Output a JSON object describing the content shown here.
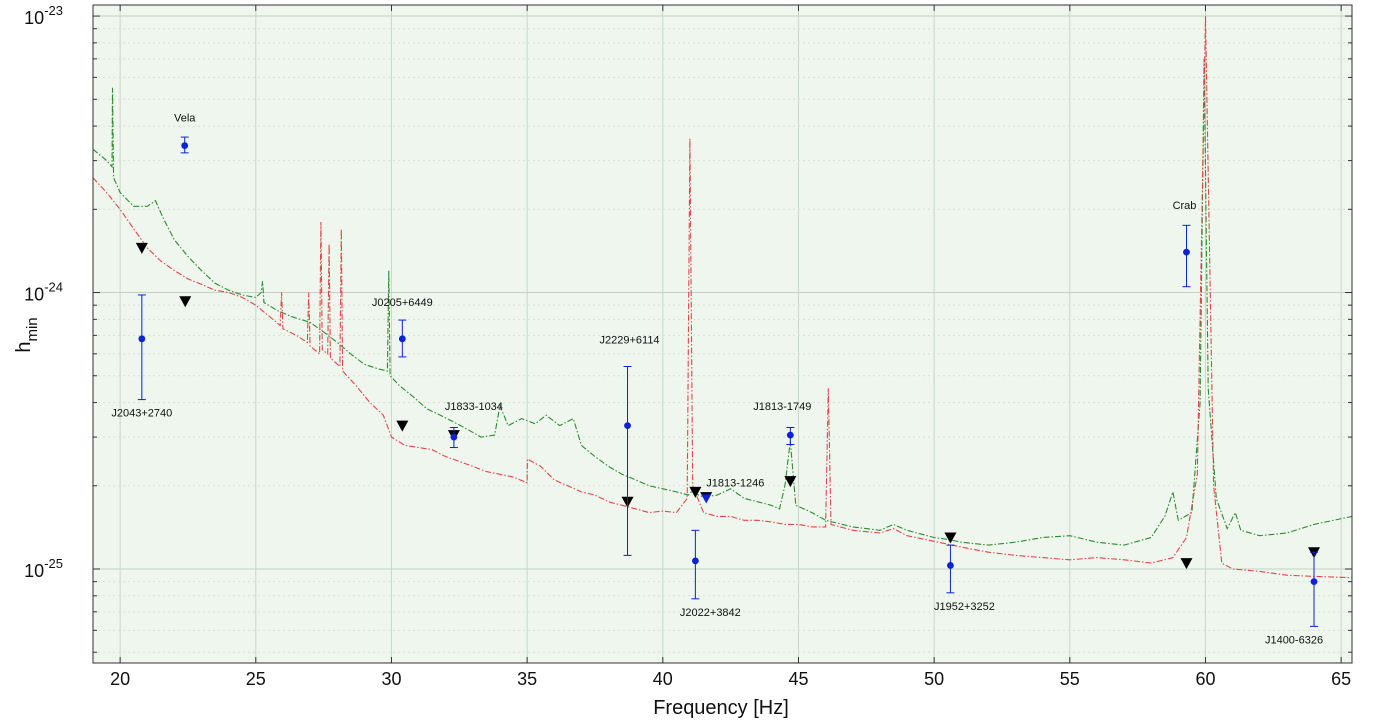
{
  "chart_data": {
    "type": "scatter",
    "title": "",
    "xlabel": "Frequency [Hz]",
    "ylabel": "h",
    "ylabel_sub": "min",
    "xlim": [
      19,
      65.4
    ],
    "ylim_log10": [
      -25.34,
      -22.96
    ],
    "y_scale": "log",
    "grid": true,
    "x_ticks": [
      "20",
      "25",
      "30",
      "35",
      "40",
      "45",
      "50",
      "55",
      "60",
      "65"
    ],
    "y_ticks": [
      {
        "base": "10",
        "exp": "-23"
      },
      {
        "base": "10",
        "exp": "-24"
      },
      {
        "base": "10",
        "exp": "-25"
      }
    ],
    "colors": {
      "background": "#eef6ee",
      "curve_green": "#2e8b2e",
      "curve_red": "#e0464c",
      "points": "#0b22d8",
      "triangles": "#000000"
    },
    "pulsars": [
      {
        "label": "Vela",
        "f": 22.38,
        "h": 3.4e-24,
        "lo": 3.2e-24,
        "hi": 3.65e-24
      },
      {
        "label": "J2043+2740",
        "f": 20.8,
        "h": 6.8e-25,
        "lo": 4.1e-25,
        "hi": 9.8e-25
      },
      {
        "label": "J0205+6449",
        "f": 30.4,
        "h": 6.8e-25,
        "lo": 5.85e-25,
        "hi": 7.95e-25
      },
      {
        "label": "J1833-1034",
        "f": 32.3,
        "h": 3e-25,
        "lo": 2.75e-25,
        "hi": 3.25e-25
      },
      {
        "label": "J2229+6114",
        "f": 38.7,
        "h": 3.3e-25,
        "lo": 1.12e-25,
        "hi": 5.4e-25
      },
      {
        "label": "J1813-1246",
        "f": 41.6,
        "h": 1.8e-25,
        "lo": 1.8e-25,
        "hi": 1.8e-25
      },
      {
        "label": "J2022+3842",
        "f": 41.2,
        "h": 1.07e-25,
        "lo": 7.8e-26,
        "hi": 1.38e-25
      },
      {
        "label": "J1813-1749",
        "f": 44.7,
        "h": 3.05e-25,
        "lo": 2.82e-25,
        "hi": 3.25e-25
      },
      {
        "label": "J1952+3252",
        "f": 50.6,
        "h": 1.03e-25,
        "lo": 8.2e-26,
        "hi": 1.22e-25
      },
      {
        "label": "Crab",
        "f": 59.3,
        "h": 1.4e-24,
        "lo": 1.05e-24,
        "hi": 1.75e-24
      },
      {
        "label": "J1400-6326",
        "f": 64.0,
        "h": 9e-26,
        "lo": 6.2e-26,
        "hi": 1.15e-25
      }
    ],
    "upper_limits": [
      {
        "f": 20.8,
        "h": 1.45e-24
      },
      {
        "f": 22.4,
        "h": 9.3e-25
      },
      {
        "f": 30.4,
        "h": 3.3e-25
      },
      {
        "f": 32.3,
        "h": 3.05e-25
      },
      {
        "f": 38.7,
        "h": 1.75e-25
      },
      {
        "f": 41.2,
        "h": 1.9e-25
      },
      {
        "f": 41.6,
        "h": 1.82e-25
      },
      {
        "f": 44.7,
        "h": 2.08e-25
      },
      {
        "f": 50.6,
        "h": 1.3e-25
      },
      {
        "f": 59.3,
        "h": 1.05e-25
      },
      {
        "f": 64.0,
        "h": 1.15e-25
      }
    ],
    "series": [
      {
        "color": "green",
        "points": [
          [
            19.0,
            3.3e-24
          ],
          [
            19.5,
            3e-24
          ],
          [
            19.7,
            2.85e-24
          ],
          [
            19.72,
            5.5e-24
          ],
          [
            19.76,
            2.6e-24
          ],
          [
            20.0,
            2.3e-24
          ],
          [
            20.5,
            2.05e-24
          ],
          [
            21.0,
            2.05e-24
          ],
          [
            21.3,
            2.15e-24
          ],
          [
            21.6,
            1.85e-24
          ],
          [
            22.0,
            1.55e-24
          ],
          [
            22.5,
            1.35e-24
          ],
          [
            23.0,
            1.2e-24
          ],
          [
            23.5,
            1.08e-24
          ],
          [
            24.0,
            1.02e-24
          ],
          [
            24.5,
            9.8e-25
          ],
          [
            25.0,
            9.6e-25
          ],
          [
            25.2,
            1e-24
          ],
          [
            25.25,
            1.1e-24
          ],
          [
            25.3,
            9.2e-25
          ],
          [
            25.8,
            8.6e-25
          ],
          [
            26.3,
            8.2e-25
          ],
          [
            27.0,
            7.8e-25
          ],
          [
            27.5,
            7.2e-25
          ],
          [
            28.0,
            6.6e-25
          ],
          [
            28.5,
            6e-25
          ],
          [
            29.0,
            5.5e-25
          ],
          [
            29.5,
            5.3e-25
          ],
          [
            29.85,
            5.2e-25
          ],
          [
            29.9,
            1.2e-24
          ],
          [
            29.95,
            5e-25
          ],
          [
            30.3,
            4.6e-25
          ],
          [
            30.8,
            4.2e-25
          ],
          [
            31.3,
            3.8e-25
          ],
          [
            31.8,
            3.6e-25
          ],
          [
            32.3,
            3.4e-25
          ],
          [
            32.8,
            3.2e-25
          ],
          [
            33.3,
            3e-25
          ],
          [
            33.8,
            3.05e-25
          ],
          [
            34.0,
            3.9e-25
          ],
          [
            34.3,
            3.3e-25
          ],
          [
            34.8,
            3.5e-25
          ],
          [
            35.3,
            3.35e-25
          ],
          [
            35.7,
            3.6e-25
          ],
          [
            36.2,
            3.3e-25
          ],
          [
            36.7,
            3.5e-25
          ],
          [
            37.0,
            2.8e-25
          ],
          [
            37.5,
            2.55e-25
          ],
          [
            38.0,
            2.35e-25
          ],
          [
            38.5,
            2.2e-25
          ],
          [
            39.0,
            2.1e-25
          ],
          [
            39.5,
            2e-25
          ],
          [
            40.0,
            1.95e-25
          ],
          [
            40.5,
            1.9e-25
          ],
          [
            40.95,
            1.85e-25
          ],
          [
            41.05,
            1.9e-25
          ],
          [
            41.5,
            1.82e-25
          ],
          [
            42.0,
            1.85e-25
          ],
          [
            42.5,
            1.95e-25
          ],
          [
            43.0,
            1.8e-25
          ],
          [
            43.5,
            1.75e-25
          ],
          [
            44.0,
            1.7e-25
          ],
          [
            44.3,
            1.65e-25
          ],
          [
            44.5,
            2e-25
          ],
          [
            44.7,
            2.9e-25
          ],
          [
            44.9,
            1.7e-25
          ],
          [
            45.5,
            1.6e-25
          ],
          [
            46.0,
            1.5e-25
          ],
          [
            47.0,
            1.42e-25
          ],
          [
            48.0,
            1.38e-25
          ],
          [
            48.5,
            1.45e-25
          ],
          [
            49.0,
            1.38e-25
          ],
          [
            50.0,
            1.3e-25
          ],
          [
            50.5,
            1.28e-25
          ],
          [
            51.0,
            1.25e-25
          ],
          [
            52.0,
            1.22e-25
          ],
          [
            53.0,
            1.25e-25
          ],
          [
            54.0,
            1.3e-25
          ],
          [
            55.0,
            1.32e-25
          ],
          [
            56.0,
            1.25e-25
          ],
          [
            57.0,
            1.22e-25
          ],
          [
            58.0,
            1.3e-25
          ],
          [
            58.5,
            1.55e-25
          ],
          [
            58.8,
            1.9e-25
          ],
          [
            59.0,
            1.5e-25
          ],
          [
            59.5,
            1.6e-25
          ],
          [
            59.8,
            4e-25
          ],
          [
            59.95,
            7e-24
          ],
          [
            60.1,
            4.5e-25
          ],
          [
            60.4,
            1.8e-25
          ],
          [
            60.8,
            1.4e-25
          ],
          [
            61.1,
            1.6e-25
          ],
          [
            61.3,
            1.38e-25
          ],
          [
            62.0,
            1.32e-25
          ],
          [
            63.0,
            1.35e-25
          ],
          [
            64.0,
            1.45e-25
          ],
          [
            65.4,
            1.55e-25
          ]
        ]
      },
      {
        "color": "red",
        "points": [
          [
            19.0,
            2.6e-24
          ],
          [
            19.5,
            2.3e-24
          ],
          [
            20.0,
            2e-24
          ],
          [
            20.5,
            1.7e-24
          ],
          [
            21.0,
            1.45e-24
          ],
          [
            21.5,
            1.3e-24
          ],
          [
            22.0,
            1.2e-24
          ],
          [
            22.5,
            1.12e-24
          ],
          [
            23.0,
            1.07e-24
          ],
          [
            23.5,
            1.02e-24
          ],
          [
            24.0,
            1e-24
          ],
          [
            24.5,
            9.6e-25
          ],
          [
            25.0,
            9e-25
          ],
          [
            25.5,
            8.2e-25
          ],
          [
            25.9,
            7.6e-25
          ],
          [
            25.95,
            1e-24
          ],
          [
            26.0,
            7.4e-25
          ],
          [
            26.5,
            7e-25
          ],
          [
            26.9,
            6.6e-25
          ],
          [
            26.95,
            1e-24
          ],
          [
            27.0,
            6.4e-25
          ],
          [
            27.35,
            6e-25
          ],
          [
            27.4,
            1.8e-24
          ],
          [
            27.45,
            6.2e-25
          ],
          [
            27.65,
            6e-25
          ],
          [
            27.7,
            1.5e-24
          ],
          [
            27.75,
            5.8e-25
          ],
          [
            28.1,
            5.4e-25
          ],
          [
            28.15,
            1.7e-24
          ],
          [
            28.2,
            5.2e-25
          ],
          [
            28.7,
            4.6e-25
          ],
          [
            29.2,
            4e-25
          ],
          [
            29.7,
            3.6e-25
          ],
          [
            30.0,
            3e-25
          ],
          [
            30.5,
            2.8e-25
          ],
          [
            31.0,
            2.75e-25
          ],
          [
            31.5,
            2.7e-25
          ],
          [
            32.0,
            2.55e-25
          ],
          [
            32.5,
            2.45e-25
          ],
          [
            33.0,
            2.35e-25
          ],
          [
            33.5,
            2.25e-25
          ],
          [
            34.0,
            2.2e-25
          ],
          [
            34.5,
            2.15e-25
          ],
          [
            35.0,
            2.05e-25
          ],
          [
            35.01,
            2.5e-25
          ],
          [
            35.5,
            2.35e-25
          ],
          [
            36.0,
            2.1e-25
          ],
          [
            36.5,
            2e-25
          ],
          [
            37.0,
            1.9e-25
          ],
          [
            37.5,
            1.85e-25
          ],
          [
            38.0,
            1.75e-25
          ],
          [
            38.5,
            1.7e-25
          ],
          [
            39.0,
            1.65e-25
          ],
          [
            39.5,
            1.6e-25
          ],
          [
            40.0,
            1.62e-25
          ],
          [
            40.5,
            1.6e-25
          ],
          [
            40.9,
            1.8e-25
          ],
          [
            41.0,
            3.6e-24
          ],
          [
            41.1,
            2e-25
          ],
          [
            41.5,
            1.6e-25
          ],
          [
            42.0,
            1.55e-25
          ],
          [
            42.5,
            1.55e-25
          ],
          [
            43.0,
            1.5e-25
          ],
          [
            43.5,
            1.5e-25
          ],
          [
            44.0,
            1.48e-25
          ],
          [
            44.5,
            1.45e-25
          ],
          [
            45.0,
            1.45e-25
          ],
          [
            45.5,
            1.42e-25
          ],
          [
            46.0,
            1.42e-25
          ],
          [
            46.1,
            4.5e-25
          ],
          [
            46.2,
            1.45e-25
          ],
          [
            47.0,
            1.38e-25
          ],
          [
            48.0,
            1.35e-25
          ],
          [
            48.5,
            1.4e-25
          ],
          [
            49.0,
            1.32e-25
          ],
          [
            50.0,
            1.26e-25
          ],
          [
            51.0,
            1.2e-25
          ],
          [
            52.0,
            1.15e-25
          ],
          [
            53.0,
            1.12e-25
          ],
          [
            54.0,
            1.1e-25
          ],
          [
            55.0,
            1.08e-25
          ],
          [
            56.0,
            1.1e-25
          ],
          [
            57.0,
            1.08e-25
          ],
          [
            58.0,
            1.05e-25
          ],
          [
            58.8,
            1.1e-25
          ],
          [
            59.3,
            1.3e-25
          ],
          [
            59.7,
            2.2e-25
          ],
          [
            60.0,
            1e-23
          ],
          [
            60.3,
            2e-25
          ],
          [
            60.6,
            1.05e-25
          ],
          [
            61.0,
            1e-25
          ],
          [
            62.0,
            9.8e-26
          ],
          [
            63.0,
            9.5e-26
          ],
          [
            64.0,
            9.4e-26
          ],
          [
            65.4,
            9.3e-26
          ]
        ]
      }
    ]
  }
}
